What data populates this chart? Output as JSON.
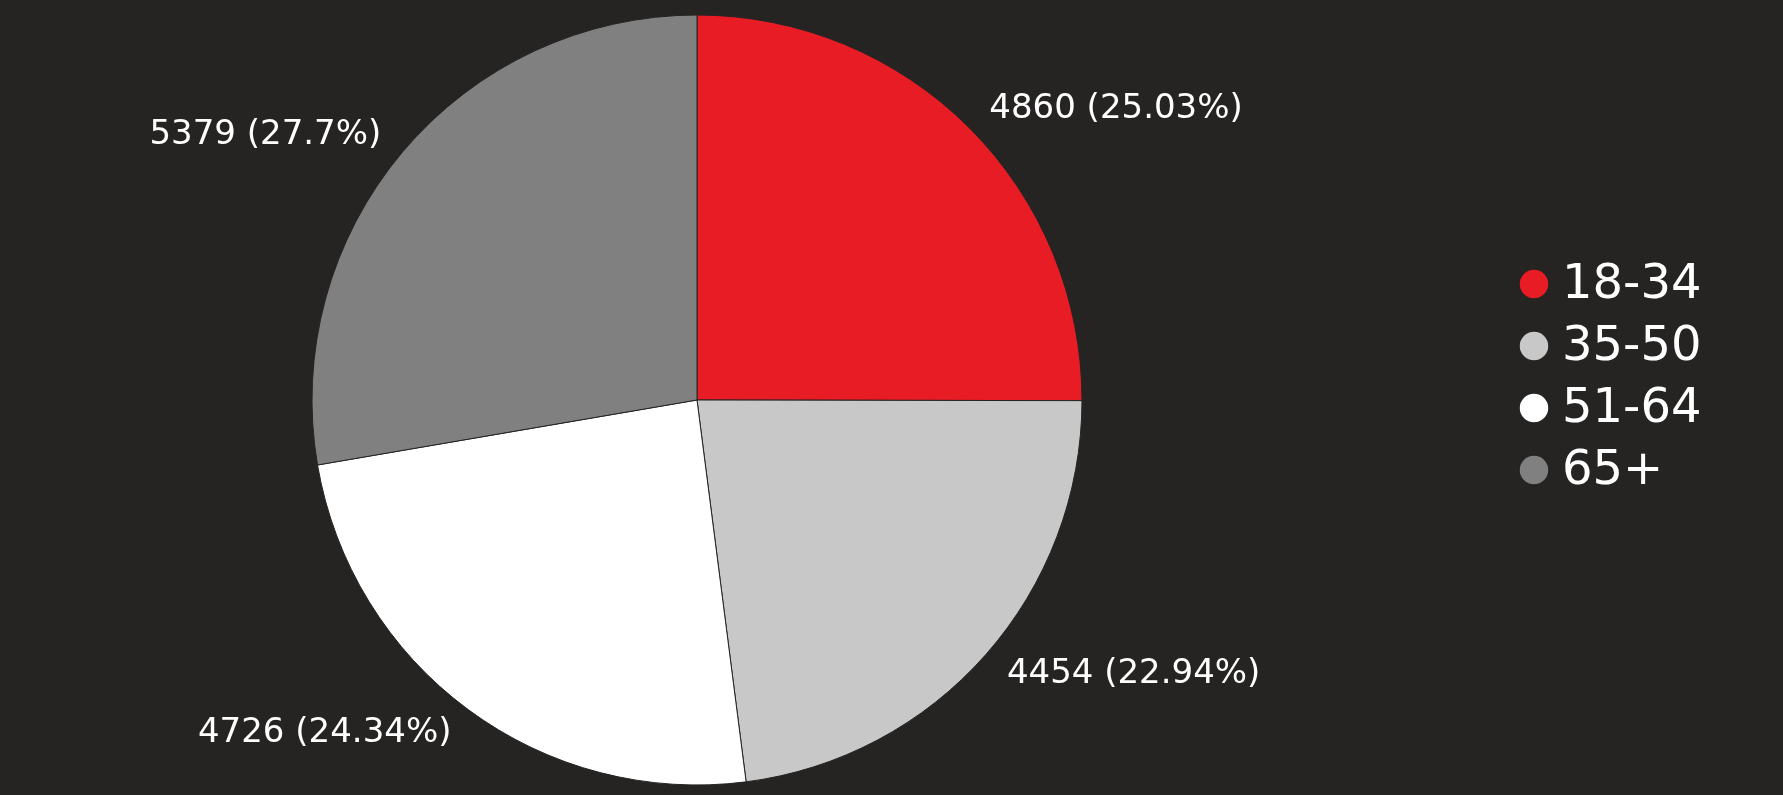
{
  "chart_data": {
    "type": "pie",
    "categories": [
      "18-34",
      "35-50",
      "51-64",
      "65+"
    ],
    "values": [
      4860,
      4454,
      4726,
      5379
    ],
    "colors": [
      "#e81c24",
      "#c8c8c8",
      "#ffffff",
      "#808080"
    ],
    "value_labels": [
      "4860 (25.03%)",
      "4454 (22.94%)",
      "4726 (24.34%)",
      "5379 (27.7%)"
    ],
    "legend": "right"
  }
}
